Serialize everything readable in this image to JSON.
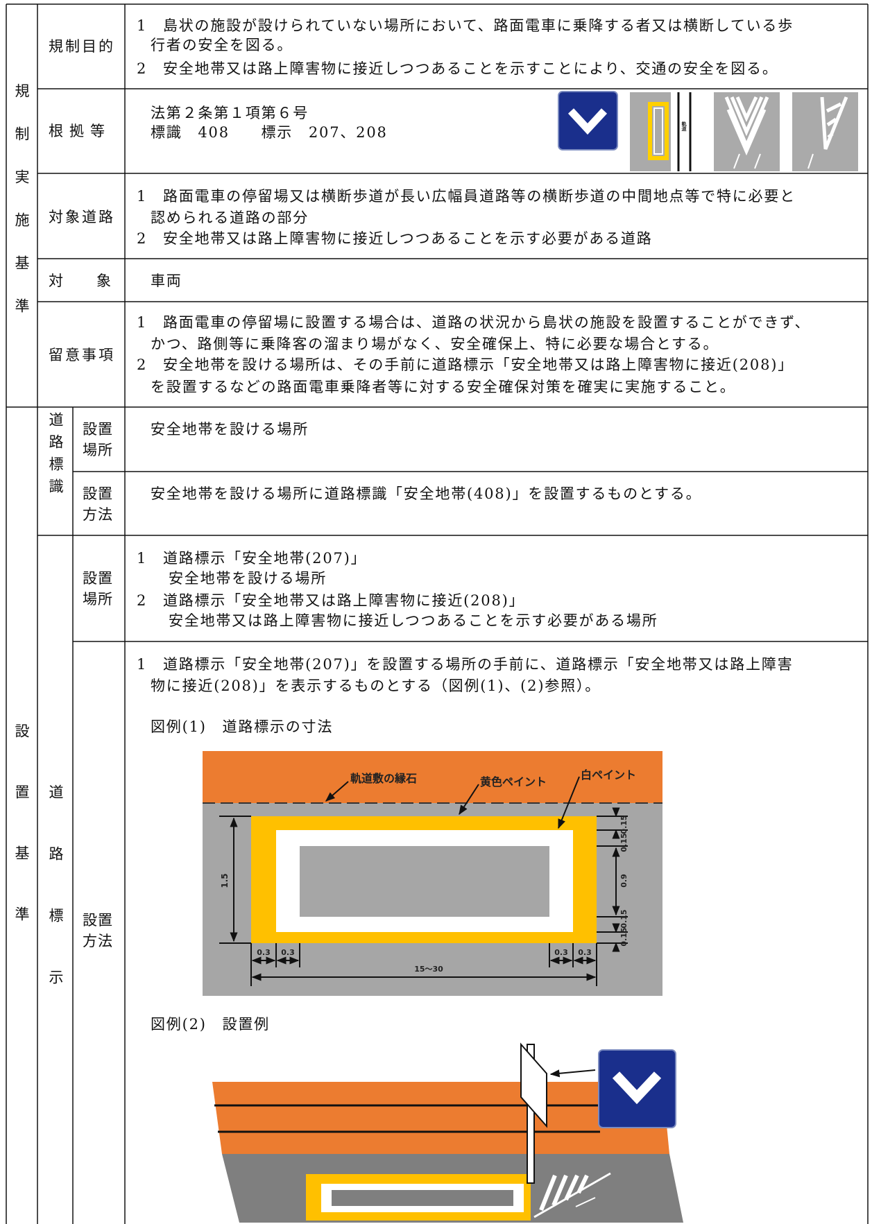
{
  "regulation_criteria": {
    "heading": "規制実施基準",
    "purpose": {
      "label": "規制目的",
      "lines": [
        "1　島状の施設が設けられていない場所において、路面電車に乗降する者又は横断している歩",
        "行者の安全を図る。",
        "2　安全地帯又は路上障害物に接近しつつあることを示すことにより、交通の安全を図る。"
      ]
    },
    "basis": {
      "label": "根拠等",
      "lines": [
        "法第２条第１項第６号",
        "標識　408　　標示　207、208"
      ],
      "image_text": "軌道"
    },
    "target_road": {
      "label": "対象道路",
      "lines": [
        "1　路面電車の停留場又は横断歩道が長い広幅員道路等の横断歩道の中間地点等で特に必要と",
        "認められる道路の部分",
        "2　安全地帯又は路上障害物に接近しつつあることを示す必要がある道路"
      ]
    },
    "target": {
      "label": "対象",
      "lines": [
        "車両"
      ]
    },
    "notes": {
      "label": "留意事項",
      "lines": [
        "1　路面電車の停留場に設置する場合は、道路の状況から島状の施設を設置することができず、",
        "かつ、路側等に乗降客の溜まり場がなく、安全確保上、特に必要な場合とする。",
        "2　安全地帯を設ける場所は、その手前に道路標示「安全地帯又は路上障害物に接近(208)」",
        "を設置するなどの路面電車乗降者等に対する安全確保対策を確実に実施すること。"
      ]
    }
  },
  "installation_criteria": {
    "heading": "設置基準",
    "road_sign": {
      "heading": "道路標識",
      "place": {
        "label": "設置場所",
        "lines": [
          "安全地帯を設ける場所"
        ]
      },
      "method": {
        "label": "設置方法",
        "lines": [
          "安全地帯を設ける場所に道路標識「安全地帯(408)」を設置するものとする。"
        ]
      }
    },
    "road_marking": {
      "heading": "道路標示",
      "place": {
        "label": "設置場所",
        "lines": [
          "1　道路標示「安全地帯(207)」",
          "安全地帯を設ける場所",
          "2　道路標示「安全地帯又は路上障害物に接近(208)」",
          "安全地帯又は路上障害物に接近しつつあることを示す必要がある場所"
        ]
      },
      "method": {
        "label": "設置方法",
        "lines": [
          "1　道路標示「安全地帯(207)」を設置する場所の手前に、道路標示「安全地帯又は路上障害",
          "物に接近(208)」を表示するものとする（図例(1)、(2)参照）。"
        ],
        "figure1": {
          "caption": "図例(1)　道路標示の寸法",
          "labels": [
            "軌道敷の縁石",
            "黄色ペイント",
            "白ペイント"
          ],
          "dimensions": [
            "1.5",
            "0.15",
            "0.15",
            "0.9",
            "0.15",
            "0.15",
            "0.3",
            "0.3",
            "0.3",
            "0.3",
            "15～30"
          ]
        },
        "figure2": {
          "caption": "図例(2)　設置例"
        }
      }
    }
  }
}
